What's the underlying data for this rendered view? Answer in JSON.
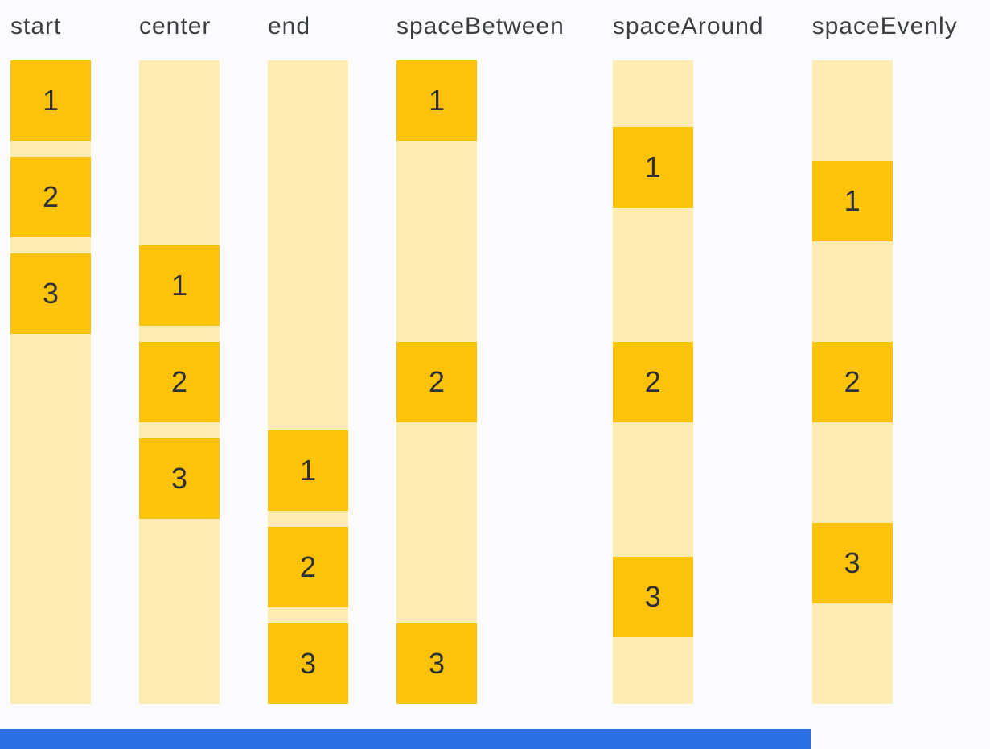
{
  "page": {
    "background": "#FBFBFE",
    "label_color": "#3A3D41",
    "digit_color": "#2F3136"
  },
  "demo": {
    "track_color": "#FFECB3",
    "box_color": "#FDC30B",
    "columns": [
      {
        "label": "start",
        "justify": "flex-start",
        "gap": 20,
        "items": [
          "1",
          "2",
          "3"
        ]
      },
      {
        "label": "center",
        "justify": "center",
        "gap": 20,
        "items": [
          "1",
          "2",
          "3"
        ]
      },
      {
        "label": "end",
        "justify": "flex-end",
        "gap": 20,
        "items": [
          "1",
          "2",
          "3"
        ]
      },
      {
        "label": "spaceBetween",
        "justify": "space-between",
        "gap": 0,
        "items": [
          "1",
          "2",
          "3"
        ]
      },
      {
        "label": "spaceAround",
        "justify": "space-around",
        "gap": 0,
        "items": [
          "1",
          "2",
          "3"
        ]
      },
      {
        "label": "spaceEvenly",
        "justify": "space-evenly",
        "gap": 0,
        "items": [
          "1",
          "2",
          "3"
        ]
      }
    ]
  },
  "bottom_bar": {
    "color": "#2B6FE3"
  }
}
